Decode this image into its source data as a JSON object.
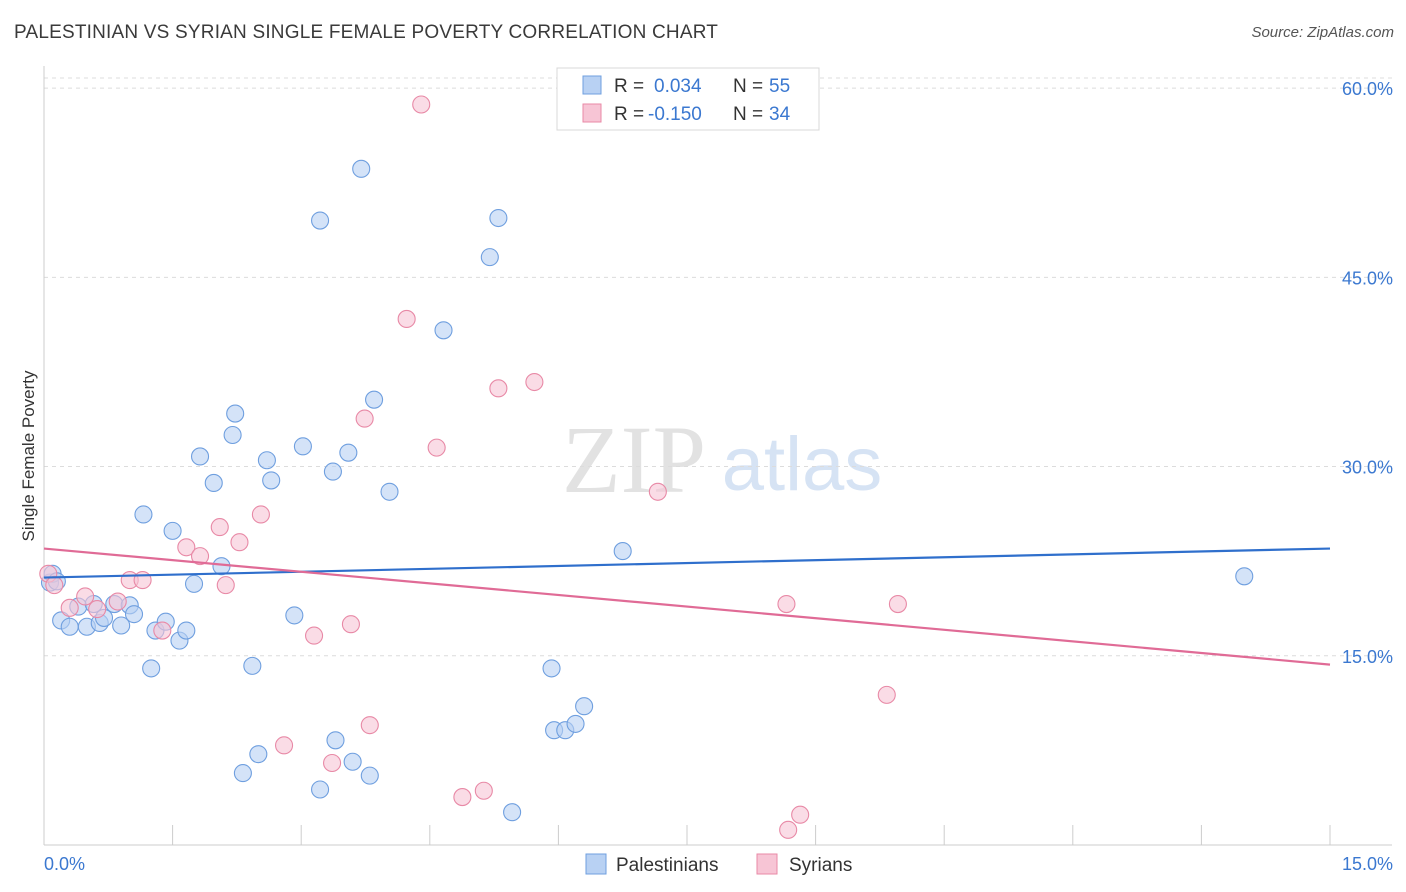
{
  "title": "PALESTINIAN VS SYRIAN SINGLE FEMALE POVERTY CORRELATION CHART",
  "source": "Source: ZipAtlas.com",
  "watermark": {
    "zip": "ZIP",
    "atlas": "atlas"
  },
  "stats_legend": [
    {
      "r_label": "R =",
      "r_value": "0.034",
      "n_label": "N =",
      "n_value": "55",
      "color": "#6f9fdf"
    },
    {
      "r_label": "R =",
      "r_value": "-0.150",
      "n_label": "N =",
      "n_value": "34",
      "color": "#e889a6"
    }
  ],
  "chart_data": {
    "type": "scatter",
    "title": "PALESTINIAN VS SYRIAN SINGLE FEMALE POVERTY CORRELATION CHART",
    "xlabel": "",
    "ylabel": "Single Female Poverty",
    "xlim": [
      0,
      15
    ],
    "ylim": [
      0,
      60.8
    ],
    "x_tick_labels": [
      "0.0%",
      "15.0%"
    ],
    "y_ticks": [
      15,
      30,
      45,
      60
    ],
    "y_tick_labels": [
      "15.0%",
      "30.0%",
      "45.0%",
      "60.0%"
    ],
    "grid": true,
    "legend_position": "bottom-center",
    "series": [
      {
        "name": "Palestinians",
        "color": "#6f9fdf",
        "fill": "#b8d1f3",
        "trend": {
          "x": [
            0,
            15
          ],
          "y": [
            21.2,
            23.5
          ]
        },
        "points": [
          [
            0.07,
            20.8
          ],
          [
            0.2,
            17.8
          ],
          [
            0.3,
            17.3
          ],
          [
            0.4,
            18.9
          ],
          [
            0.5,
            17.3
          ],
          [
            0.58,
            19.1
          ],
          [
            0.65,
            17.6
          ],
          [
            0.7,
            18.0
          ],
          [
            0.82,
            19.1
          ],
          [
            0.9,
            17.4
          ],
          [
            1.0,
            19.0
          ],
          [
            1.05,
            18.3
          ],
          [
            1.16,
            26.2
          ],
          [
            1.25,
            14.0
          ],
          [
            1.3,
            17.0
          ],
          [
            1.42,
            17.7
          ],
          [
            1.5,
            24.9
          ],
          [
            1.58,
            16.2
          ],
          [
            1.66,
            17.0
          ],
          [
            1.75,
            20.7
          ],
          [
            1.82,
            30.8
          ],
          [
            1.98,
            28.7
          ],
          [
            2.07,
            22.1
          ],
          [
            2.2,
            32.5
          ],
          [
            2.23,
            34.2
          ],
          [
            2.32,
            5.7
          ],
          [
            2.43,
            14.2
          ],
          [
            2.5,
            7.2
          ],
          [
            2.6,
            30.5
          ],
          [
            2.65,
            28.9
          ],
          [
            2.92,
            18.2
          ],
          [
            3.02,
            31.6
          ],
          [
            3.22,
            49.5
          ],
          [
            3.22,
            4.4
          ],
          [
            3.37,
            29.6
          ],
          [
            3.4,
            8.3
          ],
          [
            3.55,
            31.1
          ],
          [
            3.6,
            6.6
          ],
          [
            3.7,
            53.6
          ],
          [
            3.8,
            5.5
          ],
          [
            3.85,
            35.3
          ],
          [
            4.03,
            28.0
          ],
          [
            4.66,
            40.8
          ],
          [
            5.2,
            46.6
          ],
          [
            5.3,
            49.7
          ],
          [
            5.46,
            2.6
          ],
          [
            5.92,
            14.0
          ],
          [
            5.95,
            9.1
          ],
          [
            6.08,
            9.1
          ],
          [
            6.2,
            9.6
          ],
          [
            6.3,
            11.0
          ],
          [
            6.75,
            23.3
          ],
          [
            14.0,
            21.3
          ],
          [
            0.1,
            21.5
          ],
          [
            0.15,
            20.9
          ]
        ]
      },
      {
        "name": "Syrians",
        "color": "#e889a6",
        "fill": "#f7c5d5",
        "trend": {
          "x": [
            0,
            15
          ],
          "y": [
            23.5,
            14.3
          ]
        },
        "points": [
          [
            0.05,
            21.5
          ],
          [
            0.12,
            20.6
          ],
          [
            0.3,
            18.8
          ],
          [
            0.48,
            19.7
          ],
          [
            0.62,
            18.7
          ],
          [
            0.86,
            19.3
          ],
          [
            1.0,
            21.0
          ],
          [
            1.15,
            21.0
          ],
          [
            1.38,
            17.0
          ],
          [
            1.66,
            23.6
          ],
          [
            1.82,
            22.9
          ],
          [
            2.05,
            25.2
          ],
          [
            2.12,
            20.6
          ],
          [
            2.28,
            24.0
          ],
          [
            2.53,
            26.2
          ],
          [
            2.8,
            7.9
          ],
          [
            3.15,
            16.6
          ],
          [
            3.36,
            6.5
          ],
          [
            3.58,
            17.5
          ],
          [
            3.74,
            33.8
          ],
          [
            3.8,
            9.5
          ],
          [
            4.23,
            41.7
          ],
          [
            4.4,
            58.7
          ],
          [
            4.58,
            31.5
          ],
          [
            4.88,
            3.8
          ],
          [
            5.13,
            4.3
          ],
          [
            5.3,
            36.2
          ],
          [
            5.72,
            36.7
          ],
          [
            7.16,
            28.0
          ],
          [
            8.66,
            19.1
          ],
          [
            8.68,
            1.2
          ],
          [
            8.82,
            2.4
          ],
          [
            9.96,
            19.1
          ],
          [
            9.83,
            11.9
          ]
        ]
      }
    ]
  }
}
